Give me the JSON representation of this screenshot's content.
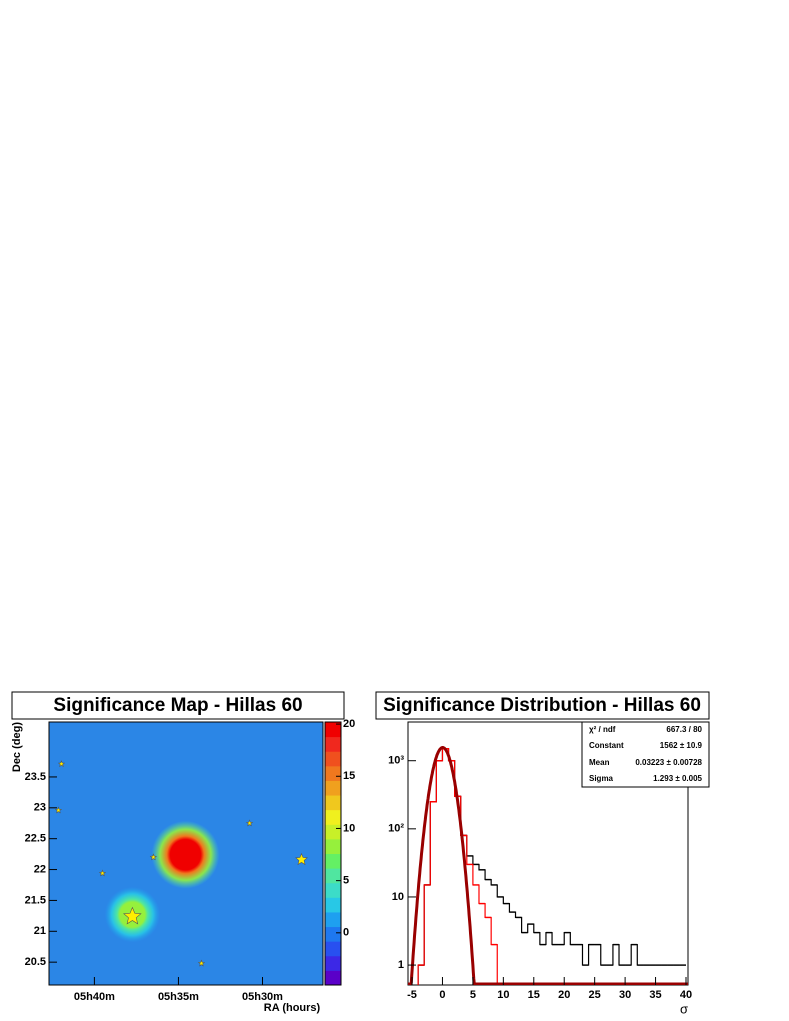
{
  "chart_data": [
    {
      "type": "heatmap",
      "title": "Significance Map - Hillas 60",
      "x_label": "RA (hours)",
      "y_label": "Dec (deg)",
      "xlim": [
        42.7,
        26.4
      ],
      "xticks": [
        {
          "value": 40,
          "label": "05h40m"
        },
        {
          "value": 35,
          "label": "05h35m"
        },
        {
          "value": 30,
          "label": "05h30m"
        }
      ],
      "ylim": [
        20.13,
        24.39
      ],
      "yticks": [
        20.5,
        21,
        21.5,
        22,
        22.5,
        23,
        23.5
      ],
      "zlim": [
        -5,
        20.2
      ],
      "zticks": [
        0,
        5,
        10,
        15,
        20
      ],
      "colors": [
        "#5a00c8",
        "#3c28e6",
        "#2850f0",
        "#1e78f0",
        "#1ea0f0",
        "#28c8e6",
        "#3cdcc8",
        "#50e6a0",
        "#64f064",
        "#96f03c",
        "#c8f028",
        "#f0f01e",
        "#f0c81e",
        "#f0a01e",
        "#f0781e",
        "#f0501e",
        "#f0281e",
        "#f00000"
      ],
      "hotspots": {
        "x": [
          34.58,
          37.74
        ],
        "y": [
          22.24,
          21.27
        ],
        "values": [
          25,
          8
        ],
        "widths": [
          0.55,
          0.45
        ]
      },
      "stars": {
        "color": "#ffee00",
        "x": [
          41.96,
          42.14,
          39.52,
          36.49,
          30.77,
          27.68,
          33.63,
          37.74
        ],
        "y": [
          23.71,
          22.96,
          21.94,
          22.2,
          22.75,
          22.16,
          20.48,
          21.24
        ],
        "sizes": [
          3,
          3,
          3,
          3,
          3,
          6,
          3,
          9
        ]
      }
    },
    {
      "type": "histogram",
      "title": "Significance Distribution - Hillas 60",
      "x_label": "σ",
      "log_y": true,
      "xlim": [
        -5.66,
        40.33
      ],
      "xticks": [
        -5,
        0,
        5,
        10,
        15,
        20,
        25,
        30,
        35,
        40
      ],
      "ylim": [
        0.51,
        3700
      ],
      "yticks": [
        1,
        10,
        {
          "value": 100,
          "label": "10²"
        },
        {
          "value": 1000,
          "label": "10³"
        }
      ],
      "bins": [
        -5,
        -4,
        -3,
        -2,
        -1,
        0,
        1,
        2,
        3,
        4,
        5,
        6,
        7,
        8,
        9,
        10,
        11,
        12,
        13,
        14,
        15,
        16,
        17,
        18,
        19,
        20,
        21,
        22,
        23,
        24,
        25,
        26,
        27,
        28,
        29,
        30,
        31,
        32,
        33,
        34,
        35,
        36,
        37,
        38,
        39,
        40
      ],
      "series": [
        {
          "color": "#000000",
          "values": [
            0,
            1,
            15,
            250,
            1000,
            1500,
            1000,
            300,
            80,
            40,
            30,
            25,
            18,
            15,
            10,
            8,
            6,
            5,
            3,
            4,
            3,
            2,
            3,
            2,
            2,
            3,
            2,
            2,
            1,
            2,
            2,
            1,
            1,
            2,
            1,
            1,
            2,
            1,
            1,
            1,
            1,
            1,
            1,
            1,
            1
          ]
        },
        {
          "color": "#ff0000",
          "values": [
            0,
            1,
            15,
            250,
            1000,
            1500,
            1000,
            300,
            80,
            30,
            15,
            8,
            5,
            2,
            0,
            0,
            0,
            0,
            0,
            0,
            0,
            0,
            0,
            0,
            0,
            0,
            0,
            0,
            0,
            0,
            0,
            0,
            0,
            0,
            0,
            0,
            0,
            0,
            0,
            0,
            0,
            0,
            0,
            0,
            0
          ]
        }
      ],
      "fit": {
        "color": "#990000",
        "chi2_label": "χ² / ndf",
        "chi2": "667.3 / 80",
        "constant_label": "Constant",
        "constant": {
          "value": 1562,
          "label": "1562 ± 10.9"
        },
        "mean_label": "Mean",
        "mean": {
          "value": 0.03223,
          "label": "0.03223 ± 0.00728"
        },
        "sigma_label": "Sigma",
        "sigma": {
          "value": 1.293,
          "label": "1.293 ± 0.005"
        }
      }
    }
  ]
}
